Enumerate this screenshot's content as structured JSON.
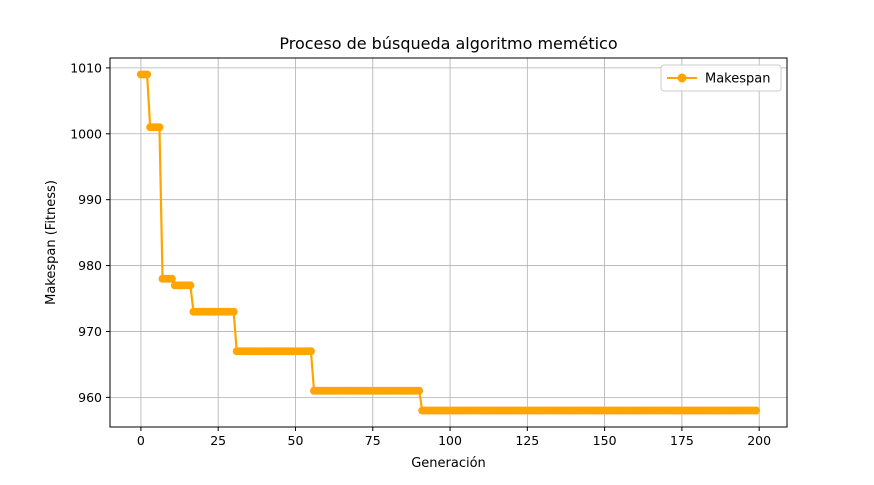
{
  "chart_data": {
    "type": "line",
    "title": "Proceso de búsqueda algoritmo memético",
    "xlabel": "Generación",
    "ylabel": "Makespan (Fitness)",
    "xlim": [
      -10,
      209
    ],
    "ylim": [
      955.5,
      1011.5
    ],
    "xticks": [
      0,
      25,
      50,
      75,
      100,
      125,
      150,
      175,
      200
    ],
    "yticks": [
      960,
      970,
      980,
      990,
      1000,
      1010
    ],
    "grid": true,
    "legend_position": "top-right",
    "color": "#FFA500",
    "series": [
      {
        "name": "Makespan",
        "marker": "circle",
        "steps": [
          {
            "from": 0,
            "to": 2,
            "value": 1009
          },
          {
            "from": 3,
            "to": 6,
            "value": 1001
          },
          {
            "from": 7,
            "to": 10,
            "value": 978
          },
          {
            "from": 11,
            "to": 16,
            "value": 977
          },
          {
            "from": 17,
            "to": 30,
            "value": 973
          },
          {
            "from": 31,
            "to": 55,
            "value": 967
          },
          {
            "from": 56,
            "to": 90,
            "value": 961
          },
          {
            "from": 91,
            "to": 199,
            "value": 958
          }
        ]
      }
    ]
  }
}
